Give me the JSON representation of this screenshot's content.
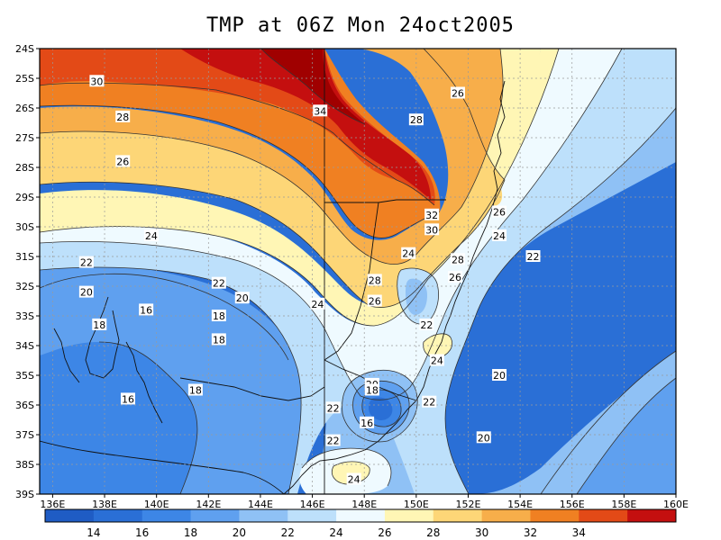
{
  "title": "TMP at 06Z Mon 24oct2005",
  "map": {
    "lon_range": [
      135.5,
      160
    ],
    "lat_range": [
      -39,
      -24
    ],
    "lon_ticks": [
      "136E",
      "138E",
      "140E",
      "142E",
      "144E",
      "146E",
      "148E",
      "150E",
      "152E",
      "154E",
      "156E",
      "158E",
      "160E"
    ],
    "lat_ticks": [
      "24S",
      "25S",
      "26S",
      "27S",
      "28S",
      "29S",
      "30S",
      "31S",
      "32S",
      "33S",
      "34S",
      "35S",
      "36S",
      "37S",
      "38S",
      "39S"
    ],
    "grid": true,
    "contour_labels": [
      {
        "text": "30",
        "lon": 137.7,
        "lat": -25.1
      },
      {
        "text": "28",
        "lon": 138.7,
        "lat": -26.3
      },
      {
        "text": "26",
        "lon": 138.7,
        "lat": -27.8
      },
      {
        "text": "24",
        "lon": 139.8,
        "lat": -30.3
      },
      {
        "text": "22",
        "lon": 137.3,
        "lat": -31.2
      },
      {
        "text": "20",
        "lon": 137.3,
        "lat": -32.2
      },
      {
        "text": "18",
        "lon": 137.8,
        "lat": -33.3
      },
      {
        "text": "16",
        "lon": 139.6,
        "lat": -32.8
      },
      {
        "text": "18",
        "lon": 142.4,
        "lat": -33.0
      },
      {
        "text": "18",
        "lon": 142.4,
        "lat": -33.8
      },
      {
        "text": "22",
        "lon": 142.4,
        "lat": -31.9
      },
      {
        "text": "20",
        "lon": 143.3,
        "lat": -32.4
      },
      {
        "text": "24",
        "lon": 146.2,
        "lat": -32.6
      },
      {
        "text": "16",
        "lon": 138.9,
        "lat": -35.8
      },
      {
        "text": "18",
        "lon": 141.5,
        "lat": -35.5
      },
      {
        "text": "34",
        "lon": 146.3,
        "lat": -26.1
      },
      {
        "text": "28",
        "lon": 150.0,
        "lat": -26.4
      },
      {
        "text": "26",
        "lon": 151.6,
        "lat": -25.5
      },
      {
        "text": "32",
        "lon": 150.6,
        "lat": -29.6
      },
      {
        "text": "30",
        "lon": 150.6,
        "lat": -30.1
      },
      {
        "text": "24",
        "lon": 149.7,
        "lat": -30.9
      },
      {
        "text": "28",
        "lon": 148.4,
        "lat": -31.8
      },
      {
        "text": "26",
        "lon": 148.4,
        "lat": -32.5
      },
      {
        "text": "28",
        "lon": 151.6,
        "lat": -31.1
      },
      {
        "text": "26",
        "lon": 151.5,
        "lat": -31.7
      },
      {
        "text": "26",
        "lon": 153.2,
        "lat": -29.5
      },
      {
        "text": "24",
        "lon": 153.2,
        "lat": -30.3
      },
      {
        "text": "22",
        "lon": 154.5,
        "lat": -31.0
      },
      {
        "text": "22",
        "lon": 150.4,
        "lat": -33.3
      },
      {
        "text": "24",
        "lon": 150.8,
        "lat": -34.5
      },
      {
        "text": "20",
        "lon": 153.2,
        "lat": -35.0
      },
      {
        "text": "20",
        "lon": 148.3,
        "lat": -35.3
      },
      {
        "text": "18",
        "lon": 148.3,
        "lat": -35.5
      },
      {
        "text": "16",
        "lon": 148.1,
        "lat": -36.6
      },
      {
        "text": "22",
        "lon": 146.8,
        "lat": -36.1
      },
      {
        "text": "22",
        "lon": 150.5,
        "lat": -35.9
      },
      {
        "text": "20",
        "lon": 152.6,
        "lat": -37.1
      },
      {
        "text": "22",
        "lon": 146.8,
        "lat": -37.2
      },
      {
        "text": "24",
        "lon": 147.6,
        "lat": -38.5
      }
    ]
  },
  "colorbar": {
    "labels": [
      "14",
      "16",
      "18",
      "20",
      "22",
      "24",
      "26",
      "28",
      "30",
      "32",
      "34"
    ],
    "colors": {
      "c12": "#1f5cc4",
      "c14": "#2a6fd6",
      "c16": "#3d86e6",
      "c18": "#5fa0ef",
      "c20": "#8fc1f5",
      "c22": "#bde0fb",
      "c24": "#effaff",
      "c26": "#fff6b5",
      "c28": "#fdd677",
      "c30": "#f7ae4a",
      "c32": "#f08022",
      "c34": "#e34a17",
      "c36": "#c40f0f",
      "c38": "#a00000"
    }
  }
}
